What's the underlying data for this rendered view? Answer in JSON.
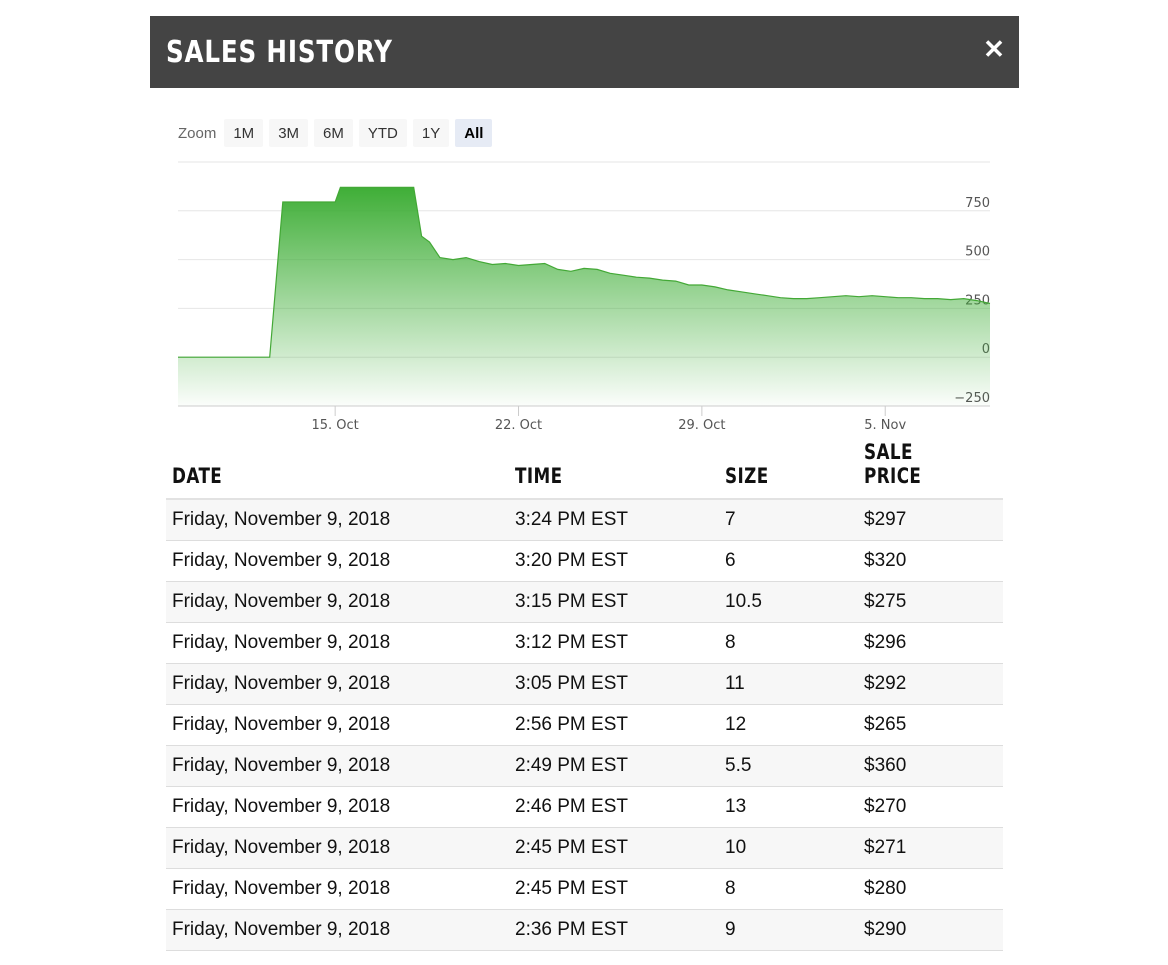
{
  "header": {
    "title": "SALES HISTORY",
    "close_icon": "close-icon"
  },
  "zoom": {
    "label": "Zoom",
    "options": [
      "1M",
      "3M",
      "6M",
      "YTD",
      "1Y",
      "All"
    ],
    "selected": "All"
  },
  "colors": {
    "header_bg": "#444444",
    "line": "#43a836",
    "fill_top": "#3fae37",
    "selected_zoom_bg": "#e6ebf5"
  },
  "chart_data": {
    "type": "area",
    "x_type": "date",
    "y_tick_labels": [
      "750",
      "500",
      "250",
      "0",
      "−250"
    ],
    "y_ticks": [
      750,
      500,
      250,
      0,
      -250
    ],
    "ylim": [
      -250,
      1000
    ],
    "x_tick_labels": [
      "15. Oct",
      "22. Oct",
      "29. Oct",
      "5. Nov"
    ],
    "x_ticks": [
      "2018-10-15",
      "2018-10-22",
      "2018-10-29",
      "2018-11-05"
    ],
    "xlim": [
      "2018-10-09",
      "2018-11-09"
    ],
    "grid": true,
    "series": [
      {
        "points": [
          [
            "2018-10-09",
            0
          ],
          [
            "2018-10-12",
            0
          ],
          [
            "2018-10-12.5",
            0
          ],
          [
            "2018-10-13",
            795
          ],
          [
            "2018-10-14",
            795
          ],
          [
            "2018-10-15",
            795
          ],
          [
            "2018-10-15.2",
            870
          ],
          [
            "2018-10-16",
            870
          ],
          [
            "2018-10-17",
            870
          ],
          [
            "2018-10-18",
            870
          ],
          [
            "2018-10-18.3",
            620
          ],
          [
            "2018-10-18.6",
            590
          ],
          [
            "2018-10-19",
            510
          ],
          [
            "2018-10-19.5",
            500
          ],
          [
            "2018-10-20",
            510
          ],
          [
            "2018-10-20.5",
            490
          ],
          [
            "2018-10-21",
            475
          ],
          [
            "2018-10-21.5",
            480
          ],
          [
            "2018-10-22",
            470
          ],
          [
            "2018-10-22.5",
            475
          ],
          [
            "2018-10-23",
            480
          ],
          [
            "2018-10-23.5",
            450
          ],
          [
            "2018-10-24",
            440
          ],
          [
            "2018-10-24.5",
            455
          ],
          [
            "2018-10-25",
            450
          ],
          [
            "2018-10-25.5",
            430
          ],
          [
            "2018-10-26",
            420
          ],
          [
            "2018-10-26.5",
            410
          ],
          [
            "2018-10-27",
            405
          ],
          [
            "2018-10-27.5",
            395
          ],
          [
            "2018-10-28",
            390
          ],
          [
            "2018-10-28.5",
            370
          ],
          [
            "2018-10-29",
            370
          ],
          [
            "2018-10-29.5",
            360
          ],
          [
            "2018-10-30",
            345
          ],
          [
            "2018-10-30.5",
            335
          ],
          [
            "2018-10-31",
            325
          ],
          [
            "2018-10-31.5",
            315
          ],
          [
            "2018-11-01",
            305
          ],
          [
            "2018-11-01.5",
            300
          ],
          [
            "2018-11-02",
            300
          ],
          [
            "2018-11-02.5",
            305
          ],
          [
            "2018-11-03",
            310
          ],
          [
            "2018-11-03.5",
            315
          ],
          [
            "2018-11-04",
            310
          ],
          [
            "2018-11-04.5",
            315
          ],
          [
            "2018-11-05",
            310
          ],
          [
            "2018-11-05.5",
            305
          ],
          [
            "2018-11-06",
            305
          ],
          [
            "2018-11-06.5",
            300
          ],
          [
            "2018-11-07",
            300
          ],
          [
            "2018-11-07.5",
            295
          ],
          [
            "2018-11-08",
            300
          ],
          [
            "2018-11-08.5",
            290
          ],
          [
            "2018-11-09",
            275
          ]
        ]
      }
    ]
  },
  "table": {
    "columns": [
      "DATE",
      "TIME",
      "SIZE",
      "SALE PRICE"
    ],
    "rows": [
      [
        "Friday, November 9, 2018",
        "3:24 PM EST",
        "7",
        "$297"
      ],
      [
        "Friday, November 9, 2018",
        "3:20 PM EST",
        "6",
        "$320"
      ],
      [
        "Friday, November 9, 2018",
        "3:15 PM EST",
        "10.5",
        "$275"
      ],
      [
        "Friday, November 9, 2018",
        "3:12 PM EST",
        "8",
        "$296"
      ],
      [
        "Friday, November 9, 2018",
        "3:05 PM EST",
        "11",
        "$292"
      ],
      [
        "Friday, November 9, 2018",
        "2:56 PM EST",
        "12",
        "$265"
      ],
      [
        "Friday, November 9, 2018",
        "2:49 PM EST",
        "5.5",
        "$360"
      ],
      [
        "Friday, November 9, 2018",
        "2:46 PM EST",
        "13",
        "$270"
      ],
      [
        "Friday, November 9, 2018",
        "2:45 PM EST",
        "10",
        "$271"
      ],
      [
        "Friday, November 9, 2018",
        "2:45 PM EST",
        "8",
        "$280"
      ],
      [
        "Friday, November 9, 2018",
        "2:36 PM EST",
        "9",
        "$290"
      ]
    ]
  }
}
